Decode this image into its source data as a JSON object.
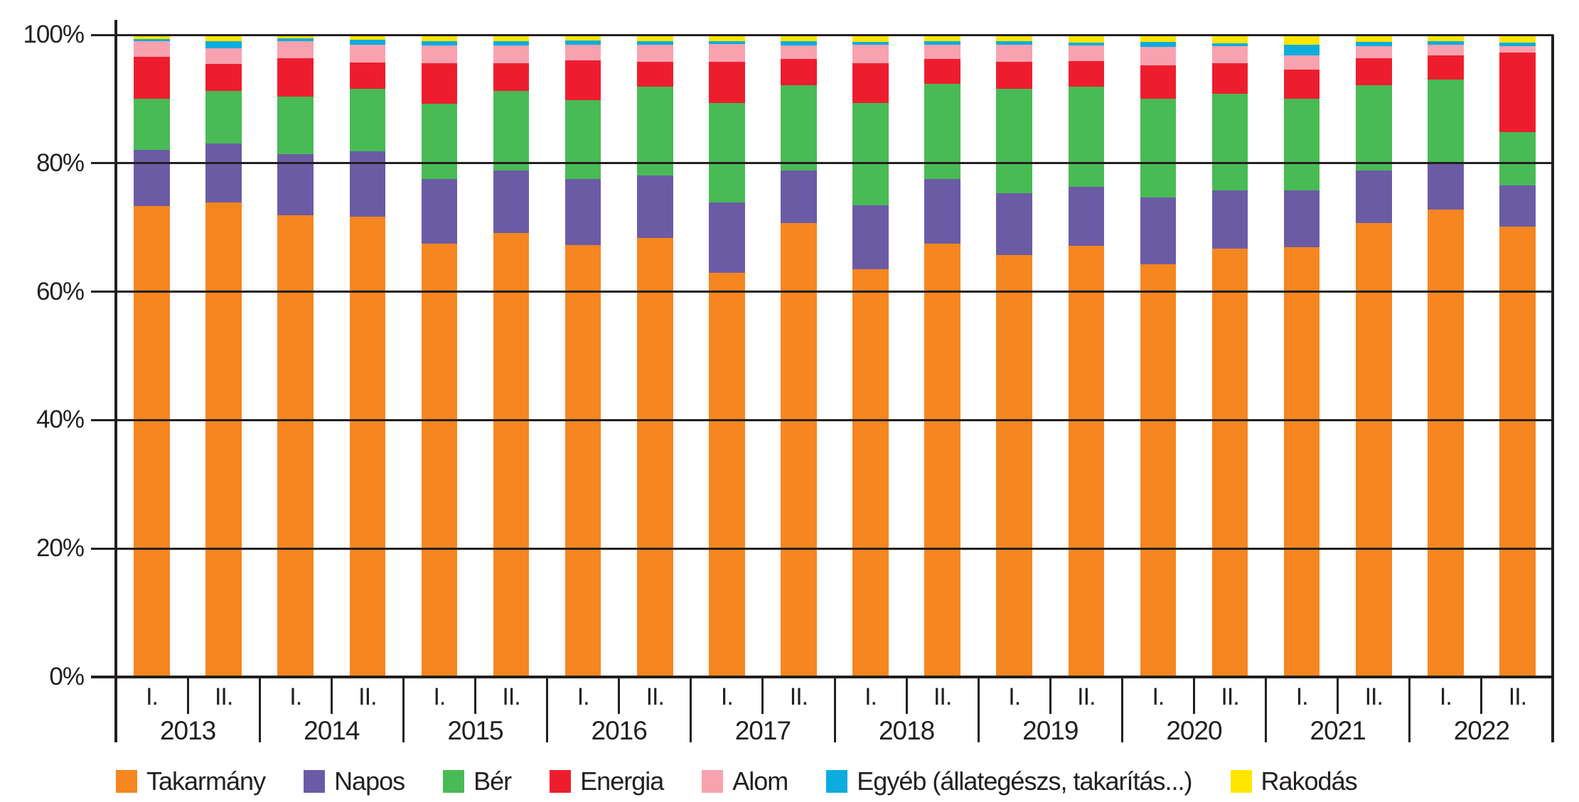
{
  "colors": {
    "axis": "#231F20",
    "background": "#FFFFFF"
  },
  "chart_data": {
    "type": "bar",
    "variant": "stacked-100-percent-column",
    "title": "",
    "xlabel": "",
    "ylabel": "",
    "legend_position": "bottom",
    "grid": true,
    "y_axis": {
      "min": 0,
      "max": 100,
      "tick_step": 20,
      "tick_labels": [
        "0%",
        "20%",
        "40%",
        "60%",
        "80%",
        "100%"
      ]
    },
    "series": [
      {
        "name": "Takarmány",
        "color": "#F6861F"
      },
      {
        "name": "Napos",
        "color": "#6B5BA5"
      },
      {
        "name": "Bér",
        "color": "#48BB55"
      },
      {
        "name": "Energia",
        "color": "#EE1D2E"
      },
      {
        "name": "Alom",
        "color": "#F8A2B0"
      },
      {
        "name": "Egyéb (állategészs, takarítás...)",
        "color": "#0DACDE"
      },
      {
        "name": "Rakodás",
        "color": "#FFE500"
      }
    ],
    "groups": [
      {
        "year": "2013",
        "bars": [
          {
            "label": "I.",
            "values": [
              73.3,
              8.8,
              8.0,
              6.5,
              2.4,
              0.3,
              0.7
            ]
          },
          {
            "label": "II.",
            "values": [
              73.9,
              9.2,
              8.2,
              4.2,
              2.4,
              1.1,
              1.0
            ]
          }
        ]
      },
      {
        "year": "2014",
        "bars": [
          {
            "label": "I.",
            "values": [
              71.9,
              9.5,
              9.0,
              6.0,
              2.6,
              0.4,
              0.6
            ]
          },
          {
            "label": "II.",
            "values": [
              71.7,
              10.2,
              9.7,
              4.1,
              2.8,
              0.7,
              0.8
            ]
          }
        ]
      },
      {
        "year": "2015",
        "bars": [
          {
            "label": "I.",
            "values": [
              67.5,
              10.0,
              11.8,
              6.3,
              2.8,
              0.6,
              1.0
            ]
          },
          {
            "label": "II.",
            "values": [
              69.1,
              9.8,
              12.4,
              4.3,
              2.8,
              0.6,
              1.0
            ]
          }
        ]
      },
      {
        "year": "2016",
        "bars": [
          {
            "label": "I.",
            "values": [
              67.3,
              10.2,
              12.3,
              6.2,
              2.4,
              0.7,
              0.9
            ]
          },
          {
            "label": "II.",
            "values": [
              68.4,
              9.7,
              13.8,
              3.9,
              2.7,
              0.5,
              1.0
            ]
          }
        ]
      },
      {
        "year": "2017",
        "bars": [
          {
            "label": "I.",
            "values": [
              62.9,
              11.0,
              15.5,
              6.4,
              2.8,
              0.4,
              1.0
            ]
          },
          {
            "label": "II.",
            "values": [
              70.7,
              8.2,
              13.3,
              4.0,
              2.2,
              0.6,
              1.0
            ]
          }
        ]
      },
      {
        "year": "2018",
        "bars": [
          {
            "label": "I.",
            "values": [
              63.5,
              9.9,
              16.0,
              6.2,
              2.9,
              0.4,
              1.1
            ]
          },
          {
            "label": "II.",
            "values": [
              67.5,
              10.0,
              14.9,
              3.8,
              2.3,
              0.5,
              1.0
            ]
          }
        ]
      },
      {
        "year": "2019",
        "bars": [
          {
            "label": "I.",
            "values": [
              65.7,
              9.6,
              16.3,
              4.2,
              2.7,
              0.5,
              1.0
            ]
          },
          {
            "label": "II.",
            "values": [
              67.1,
              9.2,
              15.6,
              4.0,
              2.4,
              0.5,
              1.2
            ]
          }
        ]
      },
      {
        "year": "2020",
        "bars": [
          {
            "label": "I.",
            "values": [
              64.3,
              10.4,
              15.4,
              5.2,
              2.8,
              0.8,
              1.1
            ]
          },
          {
            "label": "II.",
            "values": [
              66.7,
              9.1,
              15.0,
              4.8,
              2.6,
              0.5,
              1.3
            ]
          }
        ]
      },
      {
        "year": "2021",
        "bars": [
          {
            "label": "I.",
            "values": [
              66.9,
              8.9,
              14.3,
              4.5,
              2.2,
              1.7,
              1.5
            ]
          },
          {
            "label": "II.",
            "values": [
              70.7,
              8.2,
              13.3,
              4.1,
              1.9,
              0.7,
              1.1
            ]
          }
        ]
      },
      {
        "year": "2022",
        "bars": [
          {
            "label": "I.",
            "values": [
              72.8,
              7.3,
              12.9,
              3.8,
              1.7,
              0.5,
              1.0
            ]
          },
          {
            "label": "II.",
            "values": [
              70.1,
              6.5,
              8.3,
              12.3,
              1.0,
              0.6,
              1.2
            ]
          }
        ]
      }
    ]
  }
}
